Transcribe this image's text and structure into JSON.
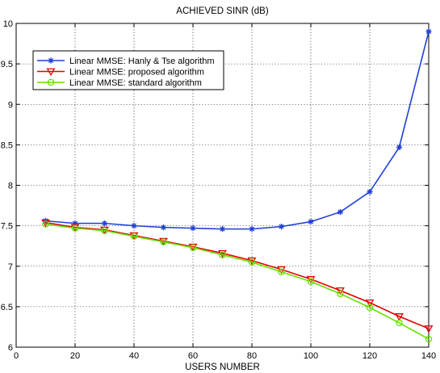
{
  "chart_data": {
    "type": "line",
    "title": "ACHIEVED SINR (dB)",
    "xlabel": "USERS NUMBER",
    "ylabel": "",
    "xlim": [
      0,
      140
    ],
    "ylim": [
      6,
      10
    ],
    "xticks": [
      "0",
      "20",
      "40",
      "60",
      "80",
      "100",
      "120",
      "140"
    ],
    "yticks": [
      "6",
      "6.5",
      "7",
      "7.5",
      "8",
      "8.5",
      "9",
      "9.5",
      "10"
    ],
    "grid": true,
    "legend_position": "top-left",
    "x": [
      10,
      20,
      30,
      40,
      50,
      60,
      70,
      80,
      90,
      100,
      110,
      120,
      130,
      140
    ],
    "series": [
      {
        "name": "Linear MMSE: Hanly & Tse algorithm",
        "color": "#1f3fd6",
        "marker": "asterisk",
        "values": [
          7.56,
          7.53,
          7.53,
          7.5,
          7.48,
          7.47,
          7.46,
          7.46,
          7.49,
          7.55,
          7.67,
          7.92,
          8.47,
          9.9
        ]
      },
      {
        "name": "Linear MMSE: proposed algorithm",
        "color": "#e00000",
        "marker": "triangle-down",
        "values": [
          7.54,
          7.48,
          7.45,
          7.38,
          7.31,
          7.24,
          7.16,
          7.07,
          6.96,
          6.84,
          6.7,
          6.55,
          6.38,
          6.23
        ]
      },
      {
        "name": "Linear MMSE: standard algorithm",
        "color": "#66e000",
        "marker": "circle",
        "values": [
          7.52,
          7.47,
          7.44,
          7.37,
          7.3,
          7.23,
          7.14,
          7.05,
          6.93,
          6.81,
          6.66,
          6.49,
          6.3,
          6.1
        ]
      }
    ]
  }
}
